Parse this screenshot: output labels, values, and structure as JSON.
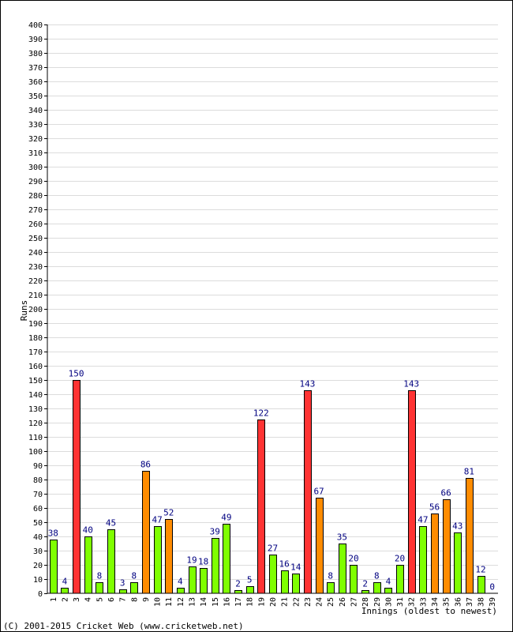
{
  "chart_data": {
    "type": "bar",
    "categories": [
      "1",
      "2",
      "3",
      "4",
      "5",
      "6",
      "7",
      "8",
      "9",
      "10",
      "11",
      "12",
      "13",
      "14",
      "15",
      "16",
      "17",
      "18",
      "19",
      "20",
      "21",
      "22",
      "23",
      "24",
      "25",
      "26",
      "27",
      "28",
      "29",
      "30",
      "31",
      "32",
      "33",
      "34",
      "35",
      "36",
      "37",
      "38",
      "39"
    ],
    "values": [
      38,
      4,
      150,
      40,
      8,
      45,
      3,
      8,
      86,
      47,
      52,
      4,
      19,
      18,
      39,
      49,
      2,
      5,
      122,
      27,
      16,
      14,
      143,
      67,
      8,
      35,
      20,
      2,
      8,
      4,
      20,
      143,
      47,
      56,
      66,
      43,
      81,
      12,
      0
    ],
    "ylabel": "Runs",
    "xlabel": "Innings (oldest to newest)",
    "ylim": [
      0,
      400
    ],
    "ytick_step": 10,
    "grid": true,
    "colors": {
      "under_50": "#7fff00",
      "fifty_plus": "#ff8c00",
      "hundred_plus": "#ff3333",
      "label": "#000080",
      "grid": "#dcdcdc"
    }
  },
  "footer": {
    "copyright": "(C) 2001-2015 Cricket Web (www.cricketweb.net)"
  }
}
